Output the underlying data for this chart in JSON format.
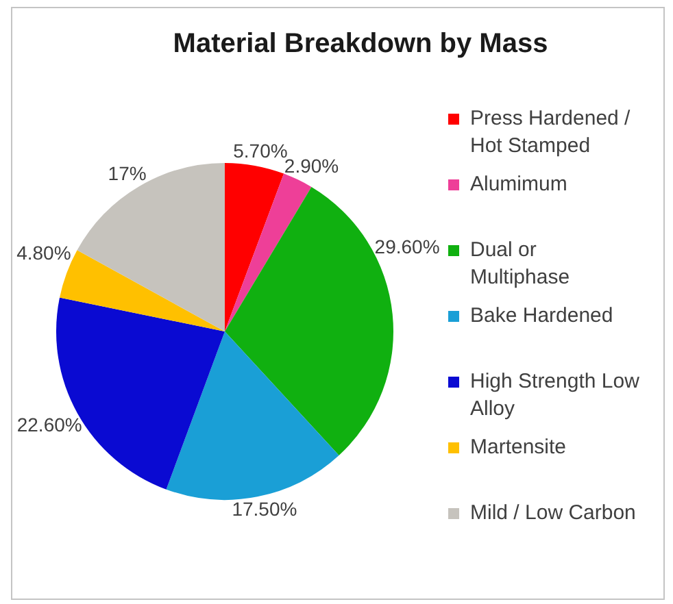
{
  "chart_data": {
    "type": "pie",
    "title": "Material Breakdown by Mass",
    "categories": [
      "Press Hardened / Hot Stamped",
      "Alumimum",
      "Dual or Multiphase",
      "Bake Hardened",
      "High Strength Low Alloy",
      "Martensite",
      "Mild / Low Carbon"
    ],
    "values": [
      5.7,
      2.9,
      29.6,
      17.5,
      22.6,
      4.8,
      17
    ],
    "colors": [
      "#ff0000",
      "#ee3f98",
      "#10b010",
      "#1a9fd6",
      "#0a0ad2",
      "#ffc000",
      "#c6c3bd"
    ],
    "value_labels": [
      "5.70%",
      "2.90%",
      "29.60%",
      "17.50%",
      "22.60%",
      "4.80%",
      "17%"
    ],
    "legend": "right"
  }
}
